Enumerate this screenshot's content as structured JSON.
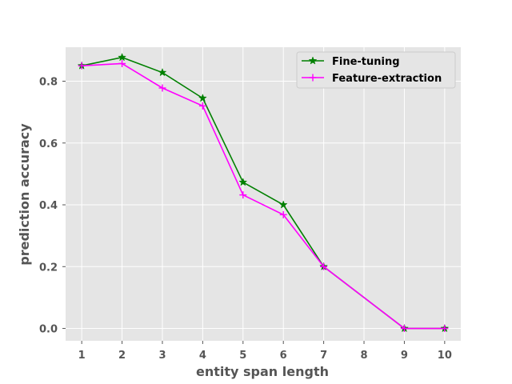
{
  "chart_data": {
    "type": "line",
    "title": "",
    "xlabel": "entity span length",
    "ylabel": "prediction accuracy",
    "xlim": [
      0.6,
      10.4
    ],
    "ylim": [
      -0.04,
      0.91
    ],
    "xticks": [
      1,
      2,
      3,
      4,
      5,
      6,
      7,
      8,
      9,
      10
    ],
    "yticks": [
      0.0,
      0.2,
      0.4,
      0.6,
      0.8
    ],
    "ytick_labels": [
      "0.0",
      "0.2",
      "0.4",
      "0.6",
      "0.8"
    ],
    "grid": true,
    "legend_position": "top-right",
    "series": [
      {
        "name": "Fine-tuning",
        "color": "#008000",
        "marker": "star",
        "x": [
          1,
          2,
          3,
          4,
          5,
          6,
          7,
          9,
          10
        ],
        "y": [
          0.85,
          0.877,
          0.828,
          0.745,
          0.473,
          0.4,
          0.2,
          0.0,
          0.0
        ]
      },
      {
        "name": "Feature-extraction",
        "color": "#ff00ff",
        "marker": "plus",
        "x": [
          1,
          2,
          3,
          4,
          5,
          6,
          7,
          9,
          10
        ],
        "y": [
          0.85,
          0.857,
          0.778,
          0.72,
          0.432,
          0.368,
          0.2,
          0.0,
          0.0
        ]
      }
    ]
  }
}
